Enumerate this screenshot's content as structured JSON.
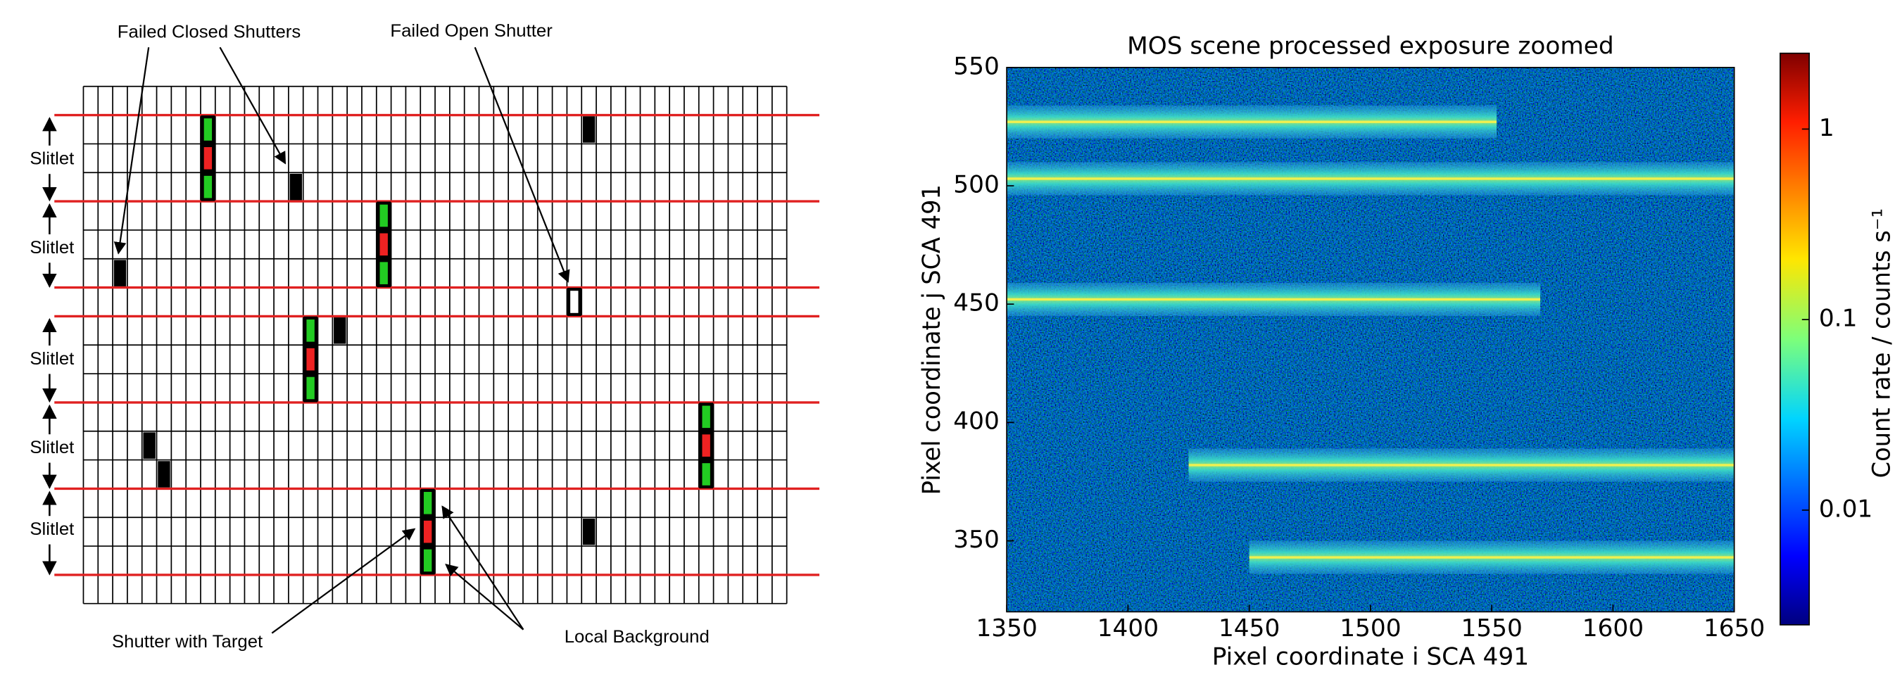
{
  "diagram": {
    "labels": {
      "failed_closed": "Failed Closed Shutters",
      "failed_open": "Failed Open Shutter",
      "target": "Shutter with Target",
      "background": "Local Background"
    },
    "slitlets": [
      "Slitlet",
      "Slitlet",
      "Slitlet",
      "Slitlet",
      "Slitlet"
    ]
  },
  "chart_data": {
    "type": "image",
    "title": "MOS scene processed exposure zoomed",
    "xlabel": "Pixel coordinate i SCA 491",
    "ylabel": "Pixel coordinate j SCA 491",
    "xlim": [
      1350,
      1650
    ],
    "ylim": [
      320,
      550
    ],
    "xticks": [
      1350,
      1400,
      1450,
      1500,
      1550,
      1600,
      1650
    ],
    "yticks": [
      350,
      400,
      450,
      500,
      550
    ],
    "traces": [
      {
        "j": 527,
        "i0": 1350,
        "i1": 1552
      },
      {
        "j": 503,
        "i0": 1350,
        "i1": 1650
      },
      {
        "j": 452,
        "i0": 1350,
        "i1": 1570
      },
      {
        "j": 382,
        "i0": 1425,
        "i1": 1650
      },
      {
        "j": 343,
        "i0": 1450,
        "i1": 1650
      }
    ],
    "colorbar": {
      "label": "Count rate / counts s⁻¹",
      "log": true,
      "clim": [
        0.0025,
        2.5
      ],
      "ticks": [
        1,
        0.1,
        0.01
      ]
    }
  }
}
